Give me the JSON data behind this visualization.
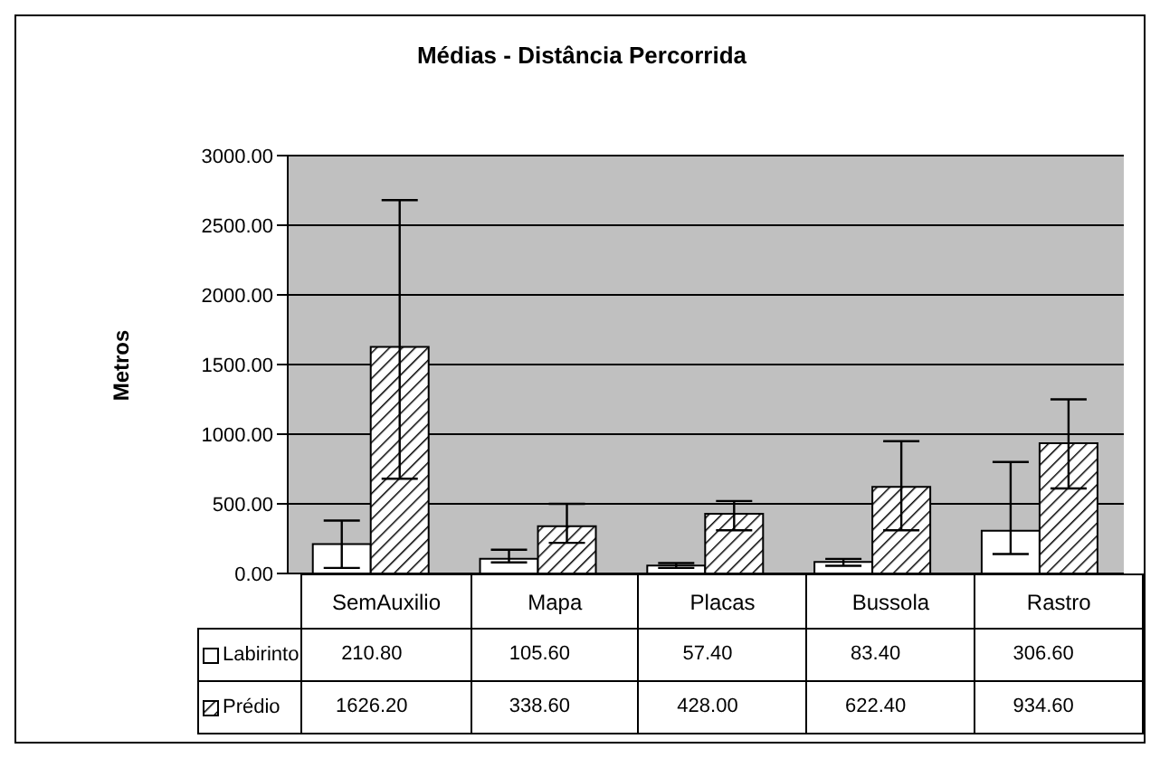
{
  "chart_data": {
    "type": "bar",
    "title": "Médias - Distância Percorrida",
    "ylabel": "Metros",
    "categories": [
      "SemAuxilio",
      "Mapa",
      "Placas",
      "Bussola",
      "Rastro"
    ],
    "series": [
      {
        "name": "Labirinto",
        "color": "#ffffff",
        "values": [
          210.8,
          105.6,
          57.4,
          83.4,
          306.6
        ],
        "value_labels": [
          "210.80",
          "105.60",
          "57.40",
          "83.40",
          "306.60"
        ],
        "errors": [
          [
            40,
            380
          ],
          [
            80,
            170
          ],
          [
            40,
            75
          ],
          [
            55,
            105
          ],
          [
            140,
            800
          ]
        ]
      },
      {
        "name": "Prédio",
        "color": "#000000",
        "values": [
          1626.2,
          338.6,
          428.0,
          622.4,
          934.6
        ],
        "value_labels": [
          "1626.20",
          "338.60",
          "428.00",
          "622.40",
          "934.60"
        ],
        "errors": [
          [
            680,
            2680
          ],
          [
            220,
            500
          ],
          [
            310,
            520
          ],
          [
            310,
            950
          ],
          [
            610,
            1250
          ]
        ]
      }
    ],
    "ylim": [
      0,
      3000
    ],
    "yticks": [
      {
        "value": 0,
        "label": "0.00"
      },
      {
        "value": 500,
        "label": "500.00"
      },
      {
        "value": 1000,
        "label": "1000.00"
      },
      {
        "value": 1500,
        "label": "1500.00"
      },
      {
        "value": 2000,
        "label": "2000.00"
      },
      {
        "value": 2500,
        "label": "2500.00"
      },
      {
        "value": 3000,
        "label": "3000.00"
      }
    ],
    "grid": "y",
    "legend": "bottom"
  }
}
